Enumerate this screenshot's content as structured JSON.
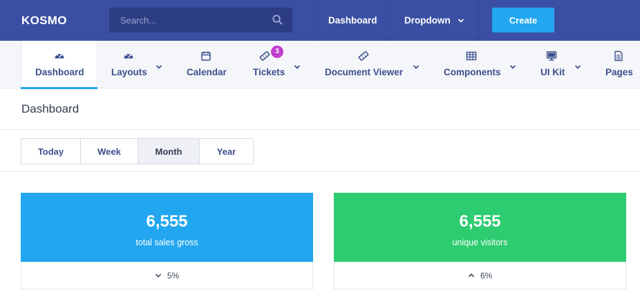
{
  "app": {
    "logo": "KOSMO"
  },
  "search": {
    "placeholder": "Search..."
  },
  "topnav": {
    "dashboard": "Dashboard",
    "dropdown": "Dropdown",
    "create": "Create"
  },
  "menu": {
    "items": [
      {
        "label": "Dashboard",
        "icon": "gauge-icon",
        "active": true
      },
      {
        "label": "Layouts",
        "icon": "gauge-icon",
        "has_dropdown": true
      },
      {
        "label": "Calendar",
        "icon": "calendar-icon"
      },
      {
        "label": "Tickets",
        "icon": "ticket-icon",
        "has_dropdown": true,
        "badge": "3"
      },
      {
        "label": "Document Viewer",
        "icon": "ticket-icon",
        "has_dropdown": true
      },
      {
        "label": "Components",
        "icon": "table-icon",
        "has_dropdown": true
      },
      {
        "label": "UI Kit",
        "icon": "monitor-icon",
        "has_dropdown": true
      },
      {
        "label": "Pages",
        "icon": "document-icon"
      }
    ]
  },
  "page": {
    "title": "Dashboard"
  },
  "range": {
    "options": [
      "Today",
      "Week",
      "Month",
      "Year"
    ],
    "selected": "Month"
  },
  "stats": {
    "sales": {
      "value": "6,555",
      "caption": "total sales gross",
      "trend": "5%",
      "direction": "down",
      "color": "#22a6f0"
    },
    "visitors": {
      "value": "6,555",
      "caption": "unique visitors",
      "trend": "6%",
      "direction": "up",
      "color": "#2ecc71"
    }
  },
  "colors": {
    "topbar": "#3a4fa3",
    "accent": "#22a6f0",
    "badge": "#c13fcd"
  }
}
